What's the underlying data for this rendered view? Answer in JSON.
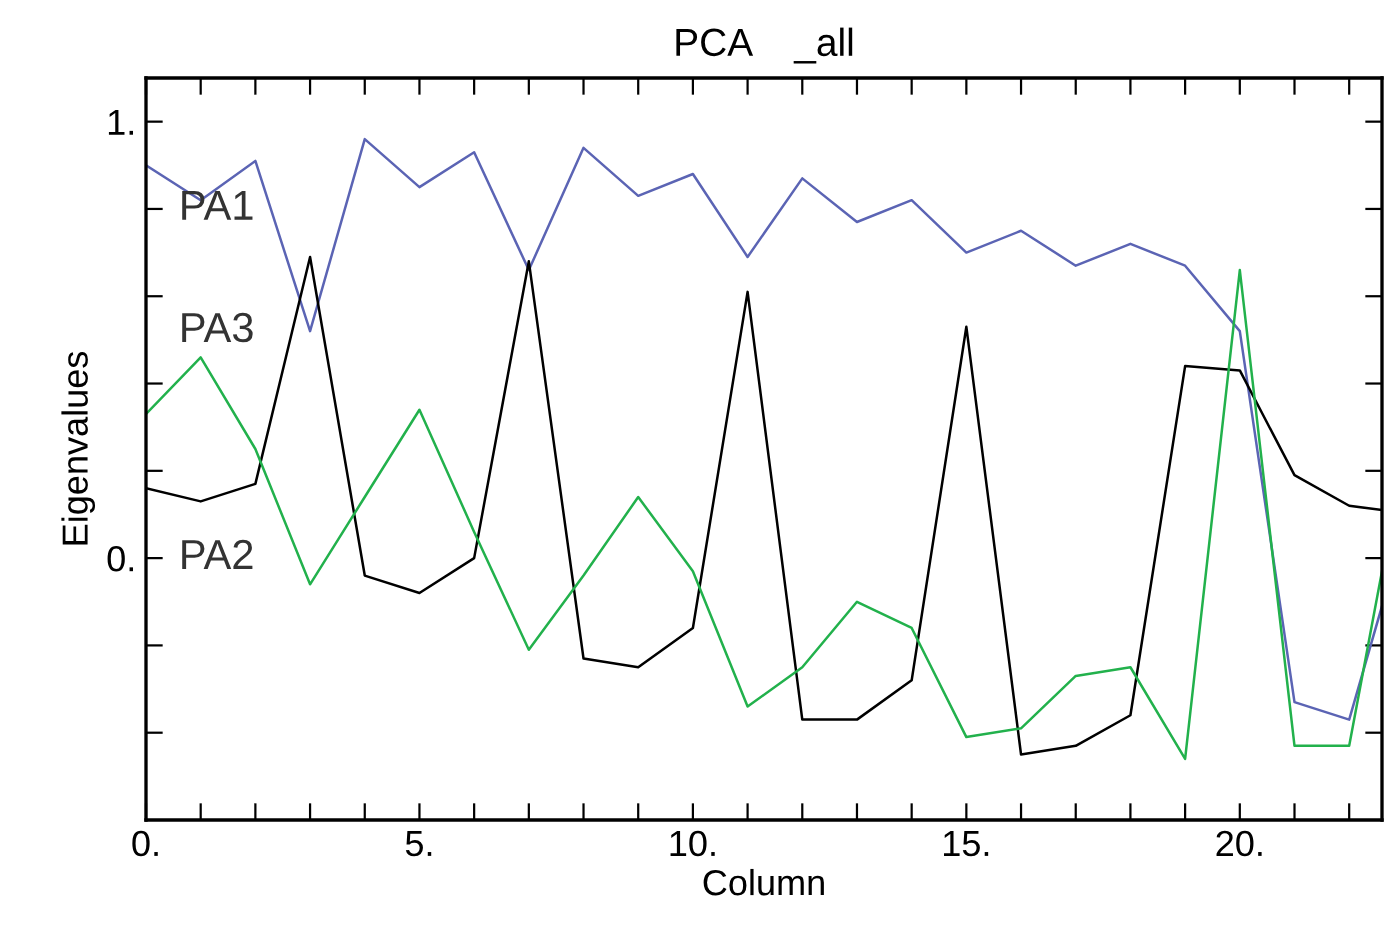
{
  "chart_data": {
    "type": "line",
    "title": "PCA    _all",
    "xlabel": "Column",
    "ylabel": "Eigenvalues",
    "x": [
      0,
      1,
      2,
      3,
      4,
      5,
      6,
      7,
      8,
      9,
      10,
      11,
      12,
      13,
      14,
      15,
      16,
      17,
      18,
      19,
      20,
      21,
      22,
      22.6
    ],
    "series": [
      {
        "name": "PA1",
        "color": "#5b64b4",
        "values": [
          0.9,
          0.82,
          0.91,
          0.52,
          0.96,
          0.85,
          0.93,
          0.66,
          0.94,
          0.83,
          0.88,
          0.69,
          0.87,
          0.77,
          0.82,
          0.7,
          0.75,
          0.67,
          0.72,
          0.67,
          0.52,
          -0.33,
          -0.37,
          -0.11
        ]
      },
      {
        "name": "PA2",
        "color": "#000000",
        "values": [
          0.16,
          0.13,
          0.17,
          0.69,
          -0.04,
          -0.08,
          0.0,
          0.68,
          -0.23,
          -0.25,
          -0.16,
          0.61,
          -0.37,
          -0.37,
          -0.28,
          0.53,
          -0.45,
          -0.43,
          -0.36,
          0.44,
          0.43,
          0.19,
          0.12,
          0.11
        ]
      },
      {
        "name": "PA3",
        "color": "#22b14c",
        "values": [
          0.33,
          0.46,
          0.25,
          -0.06,
          0.14,
          0.34,
          0.06,
          -0.21,
          -0.04,
          0.14,
          -0.03,
          -0.34,
          -0.25,
          -0.1,
          -0.16,
          -0.41,
          -0.39,
          -0.27,
          -0.25,
          -0.46,
          0.66,
          -0.43,
          -0.43,
          -0.03
        ]
      }
    ],
    "xlim": [
      0,
      22.6
    ],
    "xticks": [
      {
        "value": 0,
        "label": "0."
      },
      {
        "value": 1,
        "label": null
      },
      {
        "value": 2,
        "label": null
      },
      {
        "value": 3,
        "label": null
      },
      {
        "value": 4,
        "label": null
      },
      {
        "value": 5,
        "label": "5."
      },
      {
        "value": 6,
        "label": null
      },
      {
        "value": 7,
        "label": null
      },
      {
        "value": 8,
        "label": null
      },
      {
        "value": 9,
        "label": null
      },
      {
        "value": 10,
        "label": "10."
      },
      {
        "value": 11,
        "label": null
      },
      {
        "value": 12,
        "label": null
      },
      {
        "value": 13,
        "label": null
      },
      {
        "value": 14,
        "label": null
      },
      {
        "value": 15,
        "label": "15."
      },
      {
        "value": 16,
        "label": null
      },
      {
        "value": 17,
        "label": null
      },
      {
        "value": 18,
        "label": null
      },
      {
        "value": 19,
        "label": null
      },
      {
        "value": 20,
        "label": "20."
      },
      {
        "value": 21,
        "label": null
      },
      {
        "value": 22,
        "label": null
      }
    ],
    "ylim": [
      -0.6,
      1.1
    ],
    "yticks": [
      {
        "value": -0.4,
        "label": null
      },
      {
        "value": -0.2,
        "label": null
      },
      {
        "value": 0,
        "label": "0."
      },
      {
        "value": 0.2,
        "label": null
      },
      {
        "value": 0.4,
        "label": null
      },
      {
        "value": 0.6,
        "label": null
      },
      {
        "value": 0.8,
        "label": null
      },
      {
        "value": 1,
        "label": "1."
      }
    ],
    "grid": false,
    "legend": false,
    "marker": "none",
    "line_style": "solid"
  }
}
